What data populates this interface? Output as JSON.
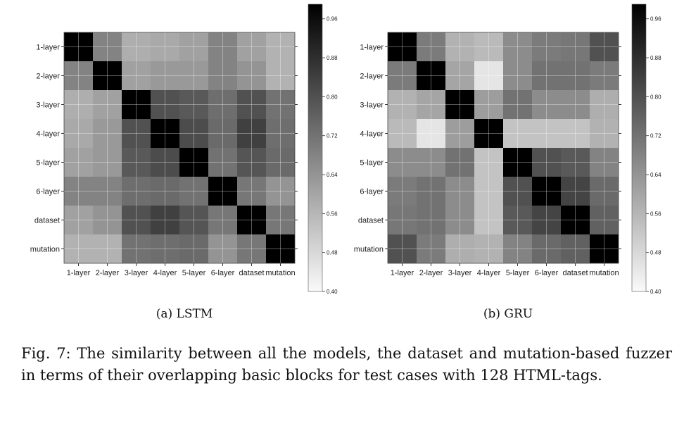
{
  "chart_data": [
    {
      "type": "heatmap",
      "subcaption": "(a) LSTM",
      "categories": [
        "1-layer",
        "2-layer",
        "3-layer",
        "4-layer",
        "5-layer",
        "6-layer",
        "dataset",
        "mutation"
      ],
      "values": [
        [
          0.99,
          0.68,
          0.58,
          0.59,
          0.61,
          0.68,
          0.61,
          0.57
        ],
        [
          0.68,
          0.99,
          0.61,
          0.63,
          0.63,
          0.68,
          0.64,
          0.57
        ],
        [
          0.58,
          0.61,
          0.99,
          0.8,
          0.78,
          0.73,
          0.8,
          0.72
        ],
        [
          0.59,
          0.63,
          0.8,
          0.99,
          0.81,
          0.74,
          0.84,
          0.73
        ],
        [
          0.61,
          0.63,
          0.78,
          0.81,
          0.99,
          0.72,
          0.79,
          0.74
        ],
        [
          0.68,
          0.68,
          0.73,
          0.74,
          0.72,
          0.99,
          0.71,
          0.64
        ],
        [
          0.61,
          0.64,
          0.8,
          0.84,
          0.79,
          0.71,
          0.99,
          0.71
        ],
        [
          0.57,
          0.57,
          0.72,
          0.73,
          0.74,
          0.64,
          0.71,
          0.99
        ]
      ],
      "colorbar": {
        "min": 0.4,
        "max": 0.99,
        "ticks": [
          "0.96",
          "0.88",
          "0.80",
          "0.72",
          "0.64",
          "0.56",
          "0.48",
          "0.40"
        ],
        "tick_values": [
          0.96,
          0.88,
          0.8,
          0.72,
          0.64,
          0.56,
          0.48,
          0.4
        ],
        "colormap": "gray_r"
      },
      "grid": true
    },
    {
      "type": "heatmap",
      "subcaption": "(b) GRU",
      "categories": [
        "1-layer",
        "2-layer",
        "3-layer",
        "4-layer",
        "5-layer",
        "6-layer",
        "dataset",
        "mutation"
      ],
      "values": [
        [
          0.99,
          0.7,
          0.57,
          0.55,
          0.66,
          0.7,
          0.71,
          0.8
        ],
        [
          0.7,
          0.99,
          0.6,
          0.45,
          0.66,
          0.72,
          0.72,
          0.7
        ],
        [
          0.57,
          0.6,
          0.99,
          0.62,
          0.72,
          0.66,
          0.66,
          0.58
        ],
        [
          0.55,
          0.45,
          0.62,
          0.99,
          0.53,
          0.53,
          0.53,
          0.57
        ],
        [
          0.66,
          0.66,
          0.72,
          0.53,
          0.99,
          0.8,
          0.78,
          0.68
        ],
        [
          0.7,
          0.72,
          0.66,
          0.53,
          0.8,
          0.99,
          0.83,
          0.74
        ],
        [
          0.71,
          0.72,
          0.66,
          0.53,
          0.78,
          0.83,
          0.99,
          0.76
        ],
        [
          0.8,
          0.7,
          0.58,
          0.57,
          0.68,
          0.74,
          0.76,
          0.99
        ]
      ],
      "colorbar": {
        "min": 0.4,
        "max": 0.99,
        "ticks": [
          "0.96",
          "0.88",
          "0.80",
          "0.72",
          "0.64",
          "0.56",
          "0.48",
          "0.40"
        ],
        "tick_values": [
          0.96,
          0.88,
          0.8,
          0.72,
          0.64,
          0.56,
          0.48,
          0.4
        ],
        "colormap": "gray_r"
      },
      "grid": true
    }
  ],
  "caption": "Fig. 7: The similarity between all the models, the dataset and mutation-based fuzzer in terms of their overlapping basic blocks for test cases with 128 HTML-tags."
}
